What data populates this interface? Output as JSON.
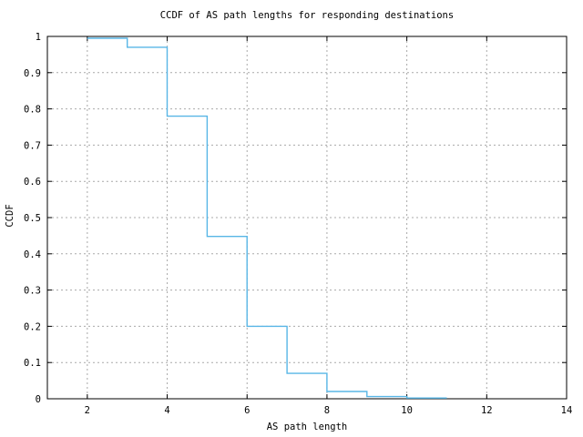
{
  "chart_data": {
    "type": "line",
    "subtype": "ccdf-step",
    "title": "CCDF of AS path lengths for responding destinations",
    "xlabel": "AS path length",
    "ylabel": "CCDF",
    "xlim": [
      1,
      14
    ],
    "ylim": [
      0,
      1
    ],
    "x_ticks": [
      2,
      4,
      6,
      8,
      10,
      12,
      14
    ],
    "y_ticks": [
      0,
      0.1,
      0.2,
      0.3,
      0.4,
      0.5,
      0.6,
      0.7,
      0.8,
      0.9,
      1
    ],
    "y_tick_labels": [
      "0",
      "0.1",
      "0.2",
      "0.3",
      "0.4",
      "0.5",
      "0.6",
      "0.7",
      "0.8",
      "0.9",
      "1"
    ],
    "grid": true,
    "grid_style": "dashed",
    "legend": "none",
    "colors": {
      "line": "#58b6e6",
      "grid": "#a9a9a9",
      "axis": "#000000",
      "background": "#ffffff"
    },
    "steps": [
      {
        "x_start": 2,
        "x_end": 3,
        "ccdf": 0.995
      },
      {
        "x_start": 3,
        "x_end": 4,
        "ccdf": 0.97
      },
      {
        "x_start": 4,
        "x_end": 5,
        "ccdf": 0.78
      },
      {
        "x_start": 5,
        "x_end": 6,
        "ccdf": 0.448
      },
      {
        "x_start": 6,
        "x_end": 7,
        "ccdf": 0.2
      },
      {
        "x_start": 7,
        "x_end": 8,
        "ccdf": 0.07
      },
      {
        "x_start": 8,
        "x_end": 9,
        "ccdf": 0.02
      },
      {
        "x_start": 9,
        "x_end": 10,
        "ccdf": 0.006
      },
      {
        "x_start": 10,
        "x_end": 11,
        "ccdf": 0.002
      }
    ]
  }
}
